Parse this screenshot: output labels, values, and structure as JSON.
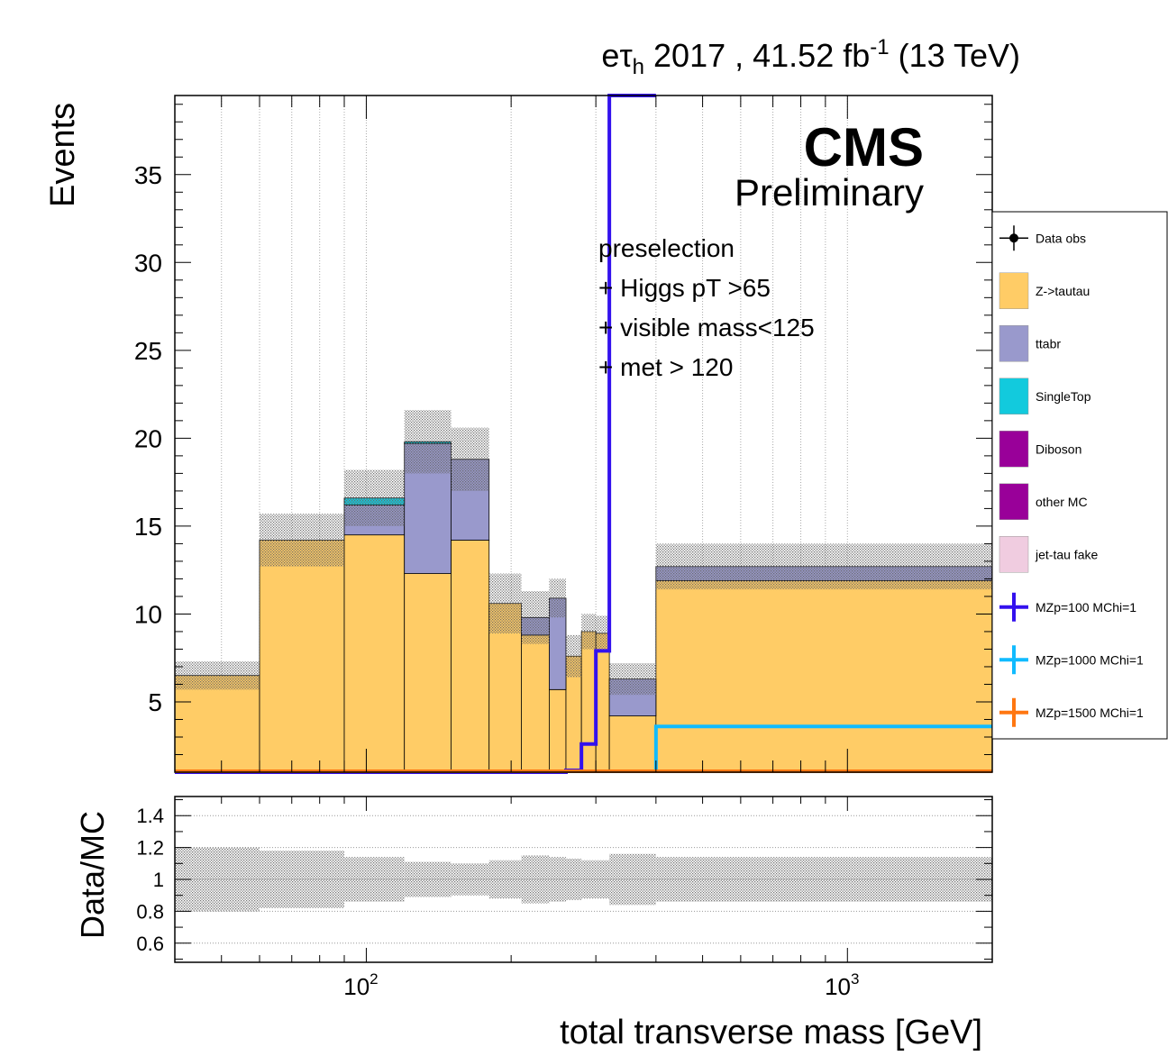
{
  "header": {
    "label_main": "e",
    "label_tau": "τ",
    "label_sub": "h",
    "label_rest": " 2017 , 41.52 fb",
    "label_sup": "-1",
    "label_energy": " (13 TeV)"
  },
  "cms_label": "CMS",
  "cms_sublabel": "Preliminary",
  "selection_text": [
    "preselection",
    "+ Higgs pT >65",
    "+ visible mass<125",
    "+ met > 120"
  ],
  "colors": {
    "ztt": "#ffcc66",
    "ttbar": "#9999cc",
    "singletop": "#12cadd",
    "diboson": "#990099",
    "other": "#990099",
    "fake": "#f0cce0",
    "sig100": "#3311ee",
    "sig1000": "#11bbff",
    "sig1500": "#ff7711"
  },
  "chart_data": [
    {
      "type": "bar",
      "stacked": true,
      "xscale": "log",
      "xlabel": "total transverse mass [GeV]",
      "ylabel": "Events",
      "xlim": [
        40,
        2000
      ],
      "ylim": [
        1,
        39.5
      ],
      "yticks": [
        5,
        10,
        15,
        20,
        25,
        30,
        35
      ],
      "xtick_labels": [
        {
          "base": "10",
          "exp": "2",
          "value": 100
        },
        {
          "base": "10",
          "exp": "3",
          "value": 1000
        }
      ],
      "grid": true,
      "bin_edges": [
        40,
        60,
        90,
        120,
        150,
        180,
        210,
        240,
        260,
        280,
        300,
        320,
        400,
        2000
      ],
      "series": [
        {
          "name": "Z->tautau",
          "key": "ztt",
          "values": [
            5.5,
            13.2,
            13.5,
            11.3,
            13.2,
            9.6,
            7.8,
            4.7,
            6.6,
            8.0,
            7.9,
            3.2,
            10.9
          ]
        },
        {
          "name": "ttabr",
          "key": "ttbar",
          "values": [
            0,
            0,
            1.7,
            7.4,
            4.6,
            0,
            1.0,
            5.2,
            0,
            0,
            0,
            2.1,
            0.8
          ]
        },
        {
          "name": "SingleTop",
          "key": "singletop",
          "values": [
            0,
            0,
            0.4,
            0.1,
            0,
            0,
            0,
            0,
            0,
            0,
            0,
            0,
            0
          ]
        },
        {
          "name": "Diboson",
          "key": "diboson",
          "values": [
            0,
            0,
            0,
            0,
            0,
            0,
            0,
            0,
            0,
            0,
            0,
            0,
            0
          ]
        },
        {
          "name": "other MC",
          "key": "other",
          "values": [
            0,
            0,
            0,
            0,
            0,
            0,
            0,
            0,
            0,
            0,
            0,
            0,
            0
          ]
        },
        {
          "name": "jet-tau fake",
          "key": "fake",
          "values": [
            0,
            0,
            0,
            0,
            0,
            0,
            0,
            0,
            0,
            0,
            0,
            0,
            0
          ]
        }
      ],
      "stat_unc": [
        0.8,
        1.5,
        1.6,
        1.8,
        1.8,
        1.7,
        1.5,
        1.1,
        1.2,
        1.0,
        1.0,
        0.9,
        1.3
      ],
      "signals": [
        {
          "name": "MZp=100 MChi=1",
          "key": "sig100",
          "values": [
            1,
            1,
            1,
            1,
            1,
            1,
            1,
            1,
            1.1,
            2.6,
            7.9,
            39.5,
            null
          ]
        },
        {
          "name": "MZp=1000 MChi=1",
          "key": "sig1000",
          "values": [
            null,
            null,
            null,
            null,
            null,
            null,
            null,
            null,
            null,
            null,
            null,
            null,
            3.6
          ]
        },
        {
          "name": "MZp=1500 MChi=1",
          "key": "sig1500",
          "values": [
            1.05,
            1.05,
            1.05,
            1.05,
            1.05,
            1.05,
            1.05,
            1.05,
            1.05,
            1.05,
            1.05,
            1.05,
            1.05
          ]
        }
      ],
      "legend": {
        "placement": "right",
        "entries": [
          {
            "label": "Data obs",
            "style": "marker",
            "key": "data"
          },
          {
            "label": "Z->tautau",
            "style": "box",
            "key": "ztt"
          },
          {
            "label": "ttabr",
            "style": "box",
            "key": "ttbar"
          },
          {
            "label": "SingleTop",
            "style": "box",
            "key": "singletop"
          },
          {
            "label": "Diboson",
            "style": "box",
            "key": "diboson"
          },
          {
            "label": "other MC",
            "style": "box",
            "key": "other"
          },
          {
            "label": "jet-tau fake",
            "style": "box",
            "key": "fake"
          },
          {
            "label": "MZp=100 MChi=1",
            "style": "cross",
            "key": "sig100"
          },
          {
            "label": "MZp=1000 MChi=1",
            "style": "cross",
            "key": "sig1000"
          },
          {
            "label": "MZp=1500 MChi=1",
            "style": "cross",
            "key": "sig1500"
          }
        ]
      }
    },
    {
      "type": "area",
      "ylabel": "Data/MC",
      "xlabel": "total transverse mass [GeV]",
      "xscale": "log",
      "xlim": [
        40,
        2000
      ],
      "ylim": [
        0.48,
        1.52
      ],
      "yticks": [
        0.6,
        0.8,
        1,
        1.2,
        1.4
      ],
      "ytick_labels": [
        "0.6",
        "0.8",
        "1",
        "1.2",
        "1.4"
      ],
      "grid": true,
      "band_rel_unc": [
        0.2,
        0.18,
        0.14,
        0.11,
        0.1,
        0.12,
        0.15,
        0.14,
        0.13,
        0.12,
        0.12,
        0.16,
        0.14
      ]
    }
  ]
}
